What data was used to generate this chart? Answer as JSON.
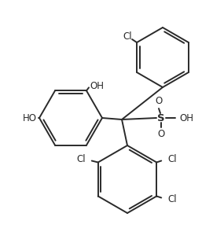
{
  "bg_color": "#ffffff",
  "line_color": "#2a2a2a",
  "line_width": 1.4,
  "font_size": 8.5,
  "labels": {
    "Cl_top": "Cl",
    "OH_top_left": "OH",
    "HO_left": "HO",
    "S": "S",
    "O_top": "O",
    "O_bottom": "O",
    "OH_right": "OH",
    "Cl_bottom_left": "Cl",
    "Cl_bottom_right": "Cl",
    "Cl_bottom_bottom": "Cl"
  }
}
